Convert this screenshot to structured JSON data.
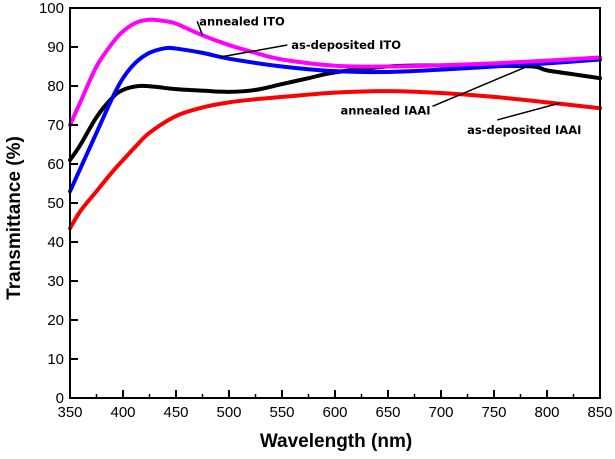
{
  "chart_data": {
    "type": "line",
    "title": "",
    "xlabel": "Wavelength (nm)",
    "ylabel": "Transmittance (%)",
    "xlim": [
      350,
      850
    ],
    "ylim": [
      0,
      100
    ],
    "xticks": [
      350,
      400,
      450,
      500,
      550,
      600,
      650,
      700,
      750,
      800,
      850
    ],
    "xticks_minor": [
      375,
      425,
      475,
      525,
      575,
      625,
      675,
      725,
      775,
      825
    ],
    "yticks": [
      0,
      10,
      20,
      30,
      40,
      50,
      60,
      70,
      80,
      90,
      100
    ],
    "grid": false,
    "legend": "none (inline annotations with leader lines)",
    "series": [
      {
        "name": "annealed ITO",
        "color": "#ff00ff",
        "x": [
          350,
          360,
          375,
          390,
          400,
          412,
          425,
          440,
          450,
          475,
          500,
          525,
          550,
          600,
          650,
          700,
          750,
          800,
          850
        ],
        "y": [
          70,
          76,
          85,
          91,
          94,
          96.2,
          97,
          96.6,
          96,
          93,
          90.5,
          88.5,
          86.8,
          85.2,
          85,
          85.3,
          85.8,
          86.5,
          87.3
        ]
      },
      {
        "name": "as-deposited ITO",
        "color": "#0000ff",
        "x": [
          350,
          360,
          375,
          390,
          400,
          412,
          425,
          440,
          450,
          475,
          500,
          550,
          600,
          650,
          700,
          750,
          800,
          850
        ],
        "y": [
          53,
          59,
          68,
          77,
          82,
          86,
          88.5,
          89.7,
          89.6,
          88.5,
          87,
          85,
          83.8,
          83.6,
          84.2,
          85,
          85.8,
          86.8
        ]
      },
      {
        "name": "annealed IAAI",
        "color": "#000000",
        "x": [
          350,
          360,
          375,
          390,
          400,
          415,
          430,
          450,
          475,
          500,
          525,
          550,
          575,
          600,
          650,
          700,
          750,
          787,
          800,
          825,
          850
        ],
        "y": [
          61,
          65,
          72,
          77,
          79,
          80,
          79.8,
          79.2,
          78.8,
          78.5,
          79,
          80.5,
          82,
          83.5,
          85,
          85.3,
          85.2,
          85,
          84,
          83,
          82
        ]
      },
      {
        "name": "as-deposited IAAI",
        "color": "#ff0000",
        "x": [
          350,
          360,
          375,
          390,
          400,
          412,
          425,
          450,
          475,
          500,
          525,
          550,
          600,
          650,
          700,
          750,
          800,
          850
        ],
        "y": [
          43.5,
          48,
          53,
          58,
          61,
          64.5,
          68,
          72.3,
          74.5,
          75.8,
          76.6,
          77.2,
          78.3,
          78.7,
          78.2,
          77.2,
          75.8,
          74.3
        ]
      }
    ],
    "annotations": [
      {
        "text": "annealed ITO",
        "series": "annealed ITO",
        "points_to": [
          475,
          93
        ],
        "label_at": [
          470,
          96.6
        ]
      },
      {
        "text": "as-deposited ITO",
        "series": "as-deposited ITO",
        "points_to": [
          491,
          87.4
        ],
        "label_at": [
          555,
          90.5
        ]
      },
      {
        "text": "annealed IAAI",
        "series": "annealed IAAI",
        "points_to": [
          783,
          85.2
        ],
        "label_at": [
          692,
          74.8
        ]
      },
      {
        "text": "as-deposited IAAI",
        "series": "as-deposited IAAI",
        "points_to": [
          812,
          75.6
        ],
        "label_at": [
          753,
          71.3
        ]
      }
    ]
  }
}
